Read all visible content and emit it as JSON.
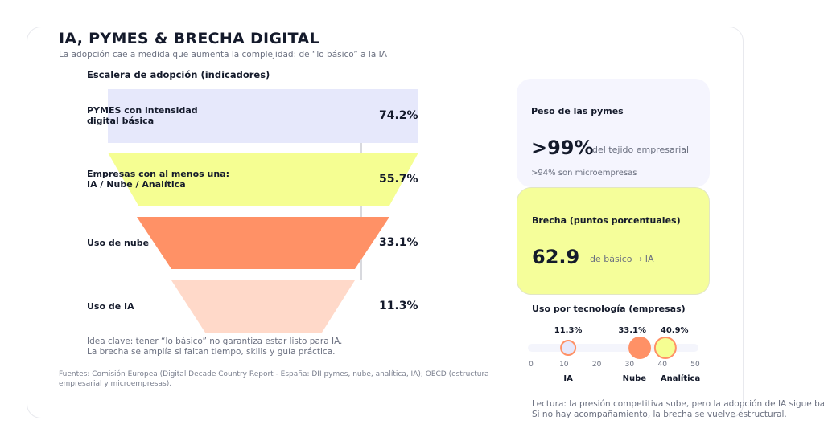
{
  "header": {
    "title": "IA, PYMES & BRECHA DIGITAL",
    "subtitle": "La adopción cae a medida que aumenta la complejidad: de “lo básico” a la IA"
  },
  "funnel": {
    "title": "Escalera de adopción (indicadores)",
    "steps": [
      {
        "label": "PYMES con intensidad\ndigital básica",
        "value": 74.2,
        "value_label": "74.2%",
        "color": "#e6e8fb"
      },
      {
        "label": "Empresas con al menos una:\nIA / Nube / Analítica",
        "value": 55.7,
        "value_label": "55.7%",
        "color": "#f5fe92"
      },
      {
        "label": "Uso de nube",
        "value": 33.1,
        "value_label": "33.1%",
        "color": "#ff9166"
      },
      {
        "label": "Uso de IA",
        "value": 11.3,
        "value_label": "11.3%",
        "color": "#ffd9c9"
      }
    ],
    "note": "Idea clave: tener “lo básico” no garantiza estar listo para IA.\nLa brecha se amplía si faltan tiempo, skills y guía práctica."
  },
  "kpi1": {
    "title": "Peso de las pymes",
    "value": ">99%",
    "unit": "del tejido empresarial",
    "detail": ">94% son microempresas"
  },
  "kpi2": {
    "title": "Brecha (puntos porcentuales)",
    "value": "62.9",
    "unit": "de básico → IA"
  },
  "chart_data": {
    "type": "scatter",
    "title": "Uso por tecnología (empresas)",
    "categories": [
      "IA",
      "Nube",
      "Analítica"
    ],
    "values": [
      11.3,
      33.1,
      40.9
    ],
    "value_labels": [
      "11.3%",
      "33.1%",
      "40.9%"
    ],
    "colors": [
      "#e6e8fb",
      "#ff9166",
      "#f5fe92"
    ],
    "xlim": [
      0,
      50
    ],
    "xticks": [
      0,
      10,
      20,
      30,
      40,
      50
    ]
  },
  "reading": "Lectura: la presión competitiva sube, pero la adopción de IA sigue baja.\nSi no hay acompañamiento, la brecha se vuelve estructural.",
  "sources": "Fuentes: Comisión Europea (Digital Decade Country Report - España: DII pymes, nube, analítica, IA); OECD (estructura empresarial y microempresas)."
}
